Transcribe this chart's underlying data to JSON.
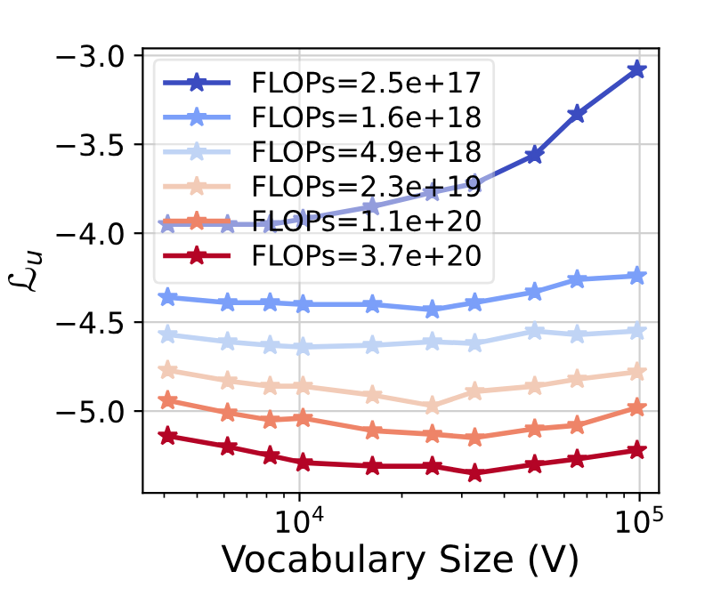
{
  "chart_data": {
    "type": "line",
    "xlabel": "Vocabulary Size (V)",
    "ylabel": "ℒ$_{u}$",
    "x": [
      4096,
      6144,
      8192,
      10240,
      16384,
      24576,
      32768,
      49152,
      65536,
      98304
    ],
    "series": [
      {
        "name": "FLOPs=2.5e+17",
        "color": "#3b4cc0",
        "values": [
          -3.95,
          -3.95,
          -3.95,
          -3.92,
          -3.85,
          -3.77,
          -3.72,
          -3.56,
          -3.33,
          -3.08
        ]
      },
      {
        "name": "FLOPs=1.6e+18",
        "color": "#7b9ff9",
        "values": [
          -4.36,
          -4.39,
          -4.39,
          -4.4,
          -4.4,
          -4.43,
          -4.39,
          -4.33,
          -4.26,
          -4.24
        ]
      },
      {
        "name": "FLOPs=4.9e+18",
        "color": "#c0d4f5",
        "values": [
          -4.57,
          -4.61,
          -4.63,
          -4.64,
          -4.63,
          -4.61,
          -4.62,
          -4.55,
          -4.57,
          -4.55
        ]
      },
      {
        "name": "FLOPs=2.3e+19",
        "color": "#f2cbb7",
        "values": [
          -4.77,
          -4.83,
          -4.86,
          -4.86,
          -4.91,
          -4.97,
          -4.89,
          -4.86,
          -4.82,
          -4.78
        ]
      },
      {
        "name": "FLOPs=1.1e+20",
        "color": "#ee8468",
        "values": [
          -4.94,
          -5.01,
          -5.05,
          -5.04,
          -5.11,
          -5.13,
          -5.15,
          -5.1,
          -5.08,
          -4.98
        ]
      },
      {
        "name": "FLOPs=3.7e+20",
        "color": "#b40426",
        "values": [
          -5.14,
          -5.2,
          -5.25,
          -5.29,
          -5.31,
          -5.31,
          -5.35,
          -5.3,
          -5.27,
          -5.22
        ]
      }
    ],
    "log": "x",
    "xlim": [
      3460,
      114000
    ],
    "xticks": [
      {
        "value": 10000,
        "label": "10$^{4}$"
      },
      {
        "value": 100000,
        "label": "10$^{5}$"
      }
    ],
    "ylim": [
      -5.46,
      -2.96
    ],
    "yticks": [
      {
        "value": -5.0,
        "label": "−5.0"
      },
      {
        "value": -4.5,
        "label": "−4.5"
      },
      {
        "value": -4.0,
        "label": "−4.0"
      },
      {
        "value": -3.5,
        "label": "−3.5"
      },
      {
        "value": -3.0,
        "label": "−3.0"
      }
    ],
    "grid": true,
    "legend": "top left",
    "marker": "star",
    "line_style": "solid"
  }
}
